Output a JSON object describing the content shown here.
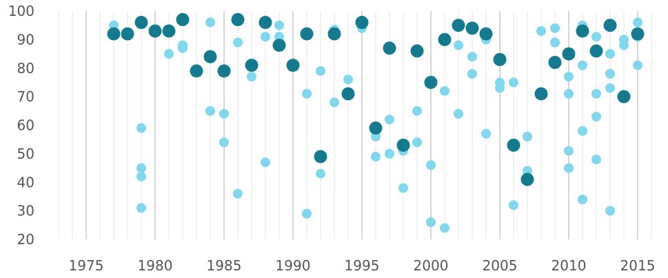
{
  "chart_data": {
    "type": "scatter",
    "title": "",
    "xlabel": "",
    "ylabel": "",
    "xlim": [
      1972.5,
      2016
    ],
    "ylim": [
      20,
      100
    ],
    "x_ticks": [
      1975,
      1980,
      1985,
      1990,
      1995,
      2000,
      2005,
      2010,
      2015
    ],
    "y_ticks": [
      20,
      30,
      40,
      50,
      60,
      70,
      80,
      90,
      100
    ],
    "grid": "vertical lines each year, heavier every 5 years",
    "colors": {
      "dark": "#137a8f",
      "light": "#7fd8ee"
    },
    "series": [
      {
        "color_key": "dark",
        "points": [
          [
            1977,
            92
          ],
          [
            1978,
            92
          ],
          [
            1979,
            96
          ],
          [
            1980,
            93
          ],
          [
            1981,
            93
          ],
          [
            1982,
            97
          ],
          [
            1983,
            79
          ],
          [
            1984,
            84
          ],
          [
            1985,
            79
          ],
          [
            1986,
            97
          ],
          [
            1987,
            81
          ],
          [
            1988,
            96
          ],
          [
            1989,
            88
          ],
          [
            1990,
            81
          ],
          [
            1991,
            92
          ],
          [
            1992,
            49
          ],
          [
            1993,
            92
          ],
          [
            1994,
            71
          ],
          [
            1995,
            96
          ],
          [
            1996,
            59
          ],
          [
            1997,
            87
          ],
          [
            1998,
            53
          ],
          [
            1999,
            86
          ],
          [
            2000,
            75
          ],
          [
            2001,
            90
          ],
          [
            2002,
            95
          ],
          [
            2003,
            94
          ],
          [
            2004,
            92
          ],
          [
            2005,
            83
          ],
          [
            2006,
            53
          ],
          [
            2007,
            41
          ],
          [
            2008,
            71
          ],
          [
            2009,
            82
          ],
          [
            2010,
            85
          ],
          [
            2011,
            93
          ],
          [
            2012,
            86
          ],
          [
            2013,
            95
          ],
          [
            2014,
            70
          ],
          [
            2015,
            92
          ]
        ]
      },
      {
        "color_key": "light",
        "points": [
          [
            1977,
            95
          ],
          [
            1979,
            59
          ],
          [
            1979,
            45
          ],
          [
            1979,
            42
          ],
          [
            1979,
            31
          ],
          [
            1981,
            85
          ],
          [
            1982,
            88
          ],
          [
            1982,
            87
          ],
          [
            1984,
            96
          ],
          [
            1984,
            65
          ],
          [
            1985,
            64
          ],
          [
            1985,
            54
          ],
          [
            1986,
            89
          ],
          [
            1986,
            36
          ],
          [
            1987,
            77
          ],
          [
            1988,
            91
          ],
          [
            1988,
            47
          ],
          [
            1989,
            95
          ],
          [
            1989,
            91
          ],
          [
            1991,
            71
          ],
          [
            1991,
            29
          ],
          [
            1992,
            79
          ],
          [
            1992,
            43
          ],
          [
            1993,
            93.5
          ],
          [
            1993,
            68
          ],
          [
            1994,
            76
          ],
          [
            1994,
            71.5
          ],
          [
            1995,
            94
          ],
          [
            1996,
            56
          ],
          [
            1996,
            49
          ],
          [
            1997,
            62
          ],
          [
            1997,
            50
          ],
          [
            1998,
            51
          ],
          [
            1998,
            38
          ],
          [
            1999,
            65
          ],
          [
            1999,
            54
          ],
          [
            2000,
            46
          ],
          [
            2000,
            26
          ],
          [
            2001,
            72
          ],
          [
            2001,
            24
          ],
          [
            2002,
            88
          ],
          [
            2002,
            64
          ],
          [
            2003,
            84
          ],
          [
            2003,
            78
          ],
          [
            2004,
            90
          ],
          [
            2004,
            57
          ],
          [
            2005,
            75
          ],
          [
            2005,
            73
          ],
          [
            2006,
            75
          ],
          [
            2006,
            32
          ],
          [
            2007,
            56
          ],
          [
            2007,
            44
          ],
          [
            2008,
            93
          ],
          [
            2009,
            94
          ],
          [
            2009,
            89
          ],
          [
            2010,
            77
          ],
          [
            2010,
            71
          ],
          [
            2010,
            51
          ],
          [
            2010,
            45
          ],
          [
            2011,
            95
          ],
          [
            2011,
            81
          ],
          [
            2011,
            58
          ],
          [
            2011,
            34
          ],
          [
            2012,
            91
          ],
          [
            2012,
            71
          ],
          [
            2012,
            63
          ],
          [
            2012,
            48
          ],
          [
            2013,
            85
          ],
          [
            2013,
            78
          ],
          [
            2013,
            73
          ],
          [
            2013,
            30
          ],
          [
            2014,
            90
          ],
          [
            2014,
            88
          ],
          [
            2015,
            96
          ],
          [
            2015,
            91
          ],
          [
            2015,
            81
          ]
        ]
      }
    ]
  }
}
